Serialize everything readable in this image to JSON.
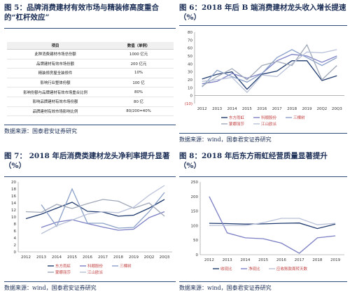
{
  "colors": {
    "title": "#1a2d55",
    "rule": "#2e4b7a",
    "dongfang": "#1f3a6e",
    "kete": "#7b7fc4",
    "sankeshu": "#8aa0c8",
    "mengna": "#a0a8b8",
    "jiangshan": "#b8c0d8"
  },
  "fig5": {
    "title_line1": "图 5：品牌消费建材有效市场与精装修高度重合",
    "title_line2": "的“杠杆效应”",
    "headers": [
      "项目",
      "数值（单例）"
    ],
    "rows": [
      [
        "此种消费建材市场总份额",
        "1000 亿元"
      ],
      [
        "品牌建材有效市场份额",
        "200 亿元"
      ],
      [
        "精装修房屋全装修件",
        "10%"
      ],
      [
        "影响行业整体份额",
        "100 亿"
      ],
      [
        "影响份额与品牌建材有效市场重合比例",
        "80%"
      ],
      [
        "影响品牌建材有效市场份额",
        "80 亿"
      ],
      [
        "品牌建材有效市场影响比例",
        "80/200=40%"
      ]
    ]
  },
  "fig6": {
    "title_line1": "图 6：2018 年后 B 端消费建材龙头收入增长提速",
    "title_line2": "（%）",
    "chart_data": {
      "type": "line",
      "categories": [
        "2012",
        "2013",
        "2014",
        "2015",
        "2016",
        "2017",
        "2018",
        "2019",
        "20Q2",
        "20Q3"
      ],
      "ylim": [
        -10,
        80
      ],
      "ytick_labels": [
        "(10)",
        "0",
        "10",
        "20",
        "30",
        "40",
        "50",
        "60",
        "70",
        "80"
      ],
      "ytick_values": [
        -10,
        0,
        10,
        20,
        30,
        40,
        50,
        60,
        70,
        80
      ],
      "series": [
        {
          "name": "东方雨虹",
          "values": [
            21,
            27,
            30,
            8,
            27,
            31,
            44,
            44,
            19,
            25
          ]
        },
        {
          "name": "科顺股份",
          "values": [
            15,
            18,
            28,
            22,
            28,
            44,
            52,
            50,
            42,
            50
          ]
        },
        {
          "name": "三棵树",
          "values": [
            11,
            32,
            24,
            17,
            28,
            48,
            58,
            48,
            38,
            48
          ]
        },
        {
          "name": "蒙娜丽莎",
          "values": [
            12,
            24,
            34,
            20,
            38,
            43,
            38,
            64,
            20,
            38
          ]
        },
        {
          "name": "江山欧派",
          "values": [
            18,
            20,
            23,
            4,
            26,
            24,
            40,
            55,
            54,
            58
          ]
        }
      ]
    },
    "legend": [
      "东方雨虹",
      "科顺股份",
      "三棵树",
      "蒙娜丽莎",
      "江山欧派"
    ],
    "source": "数据来源：wind，国泰君安证券研究"
  },
  "fig7": {
    "title_line1": "图 7：  2018 年后消费类建材龙头净利率提升显著",
    "title_line2": "（%）",
    "chart_data": {
      "type": "line",
      "categories": [
        "2012",
        "2013",
        "2014",
        "2015",
        "2016",
        "2017",
        "2018",
        "2019",
        "20Q2",
        "20Q3"
      ],
      "ylim": [
        0,
        20
      ],
      "ytick_values": [
        0,
        2,
        4,
        6,
        8,
        10,
        12,
        14,
        16,
        18,
        20
      ],
      "series": [
        {
          "name": "东方雨虹",
          "values": [
            9.5,
            10.8,
            12.5,
            14.2,
            11.6,
            11.4,
            10.2,
            10.5,
            12.5,
            15
          ]
        },
        {
          "name": "科顺股份",
          "values": [
            null,
            7,
            8.5,
            9.2,
            8.1,
            7.1,
            6.2,
            6.5,
            9.8,
            11.5
          ]
        },
        {
          "name": "三棵树",
          "values": [
            null,
            13.5,
            7.3,
            18,
            8.2,
            8.2,
            6.8,
            7,
            11.5,
            17
          ]
        },
        {
          "name": "蒙娜丽莎",
          "values": [
            11.5,
            11.3,
            13.6,
            12.4,
            13.8,
            15,
            14.5,
            12.5,
            14,
            10.2
          ]
        },
        {
          "name": "江山欧派",
          "values": [
            null,
            5.2,
            7.5,
            9.1,
            10.8,
            11.5,
            11.2,
            12.8,
            16.2,
            19
          ]
        }
      ]
    },
    "legend": [
      "东方雨虹",
      "科顺股份",
      "三棵树",
      "蒙娜丽莎",
      "江山欧派"
    ],
    "source": "数据来源：wind，国泰君安证券研究"
  },
  "fig8": {
    "title_line1": "图 8：2018 年后东方雨虹经营质量显著提升",
    "title_line2": "（%）",
    "chart_data": {
      "type": "line",
      "categories": [
        "2012",
        "2013",
        "2014",
        "2015",
        "2016",
        "2017",
        "2018",
        "2019"
      ],
      "ylim": [
        0,
        250
      ],
      "ytick_values": [
        0,
        50,
        100,
        150,
        200,
        250
      ],
      "series": [
        {
          "name": "收现比",
          "values": [
            108,
            107,
            105,
            106,
            108,
            109,
            90,
            105
          ]
        },
        {
          "name": "净现比",
          "values": [
            200,
            75,
            58,
            55,
            40,
            5,
            58,
            65
          ]
        },
        {
          "name": "应收账款周转天数",
          "values": [
            100,
            101,
            100,
            110,
            125,
            125,
            103,
            108
          ]
        }
      ]
    },
    "legend": [
      "收现比",
      "净现比",
      "应收账款周转天数"
    ],
    "source": "数据来源：wind，国泰君安证券研究"
  },
  "fig5_source": "数据来源：国泰君安证券研究"
}
